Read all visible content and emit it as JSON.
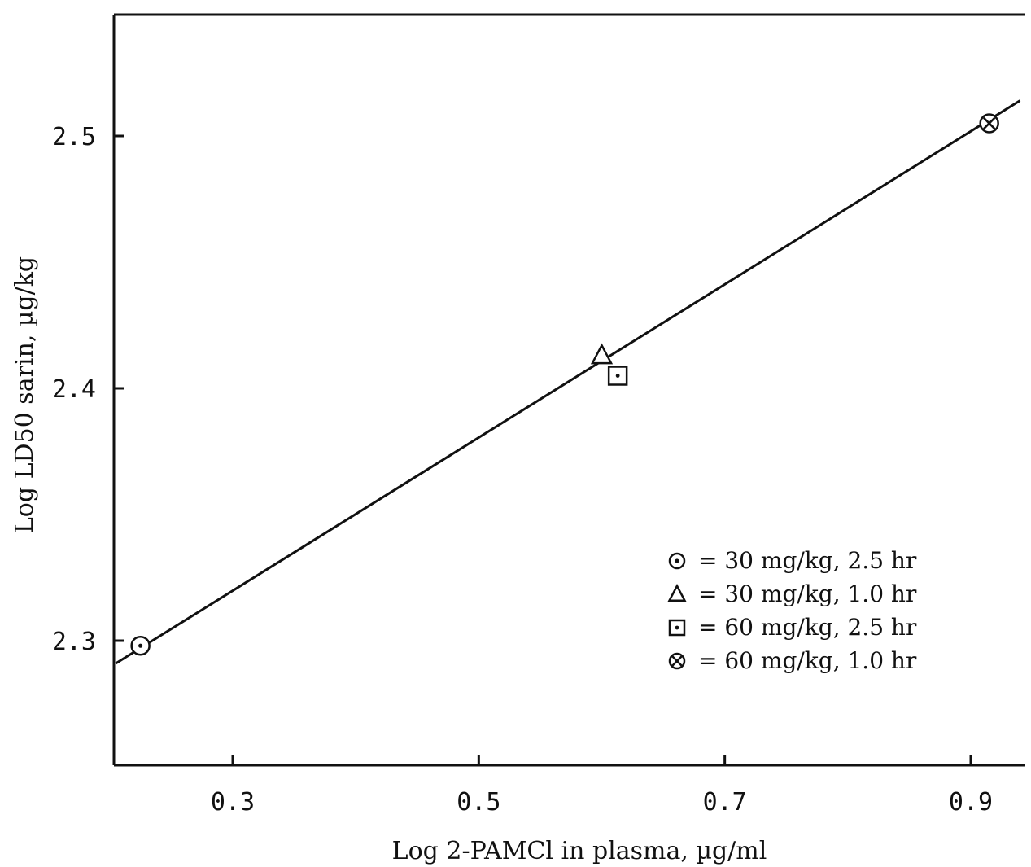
{
  "chart_data": {
    "type": "scatter",
    "title": "",
    "xlabel": "Log 2-PAMCl in plasma, µg/ml",
    "ylabel": "Log LD50 sarin, µg/kg",
    "xlim": [
      0.2,
      0.95
    ],
    "ylim": [
      2.25,
      2.55
    ],
    "xticks": [
      0.3,
      0.5,
      0.7,
      0.9
    ],
    "xtick_labels": [
      "0.3",
      "0.5",
      "0.7",
      "0.9"
    ],
    "yticks": [
      2.3,
      2.4,
      2.5
    ],
    "ytick_labels": [
      "2.3",
      "2.4",
      "2.5"
    ],
    "grid": false,
    "legend_position": "lower-right",
    "series": [
      {
        "name": "= 30 mg/kg, 2.5 hr",
        "marker": "circle-dot",
        "x": [
          0.225
        ],
        "y": [
          2.298
        ]
      },
      {
        "name": "= 30 mg/kg, 1.0 hr",
        "marker": "triangle",
        "x": [
          0.6
        ],
        "y": [
          2.413
        ]
      },
      {
        "name": "= 60 mg/kg, 2.5 hr",
        "marker": "square-dot",
        "x": [
          0.613
        ],
        "y": [
          2.405
        ]
      },
      {
        "name": "= 60 mg/kg, 1.0 hr",
        "marker": "circle-x",
        "x": [
          0.915
        ],
        "y": [
          2.505
        ]
      }
    ],
    "fit_line": {
      "x": [
        0.205,
        0.94
      ],
      "y": [
        2.291,
        2.514
      ]
    }
  }
}
